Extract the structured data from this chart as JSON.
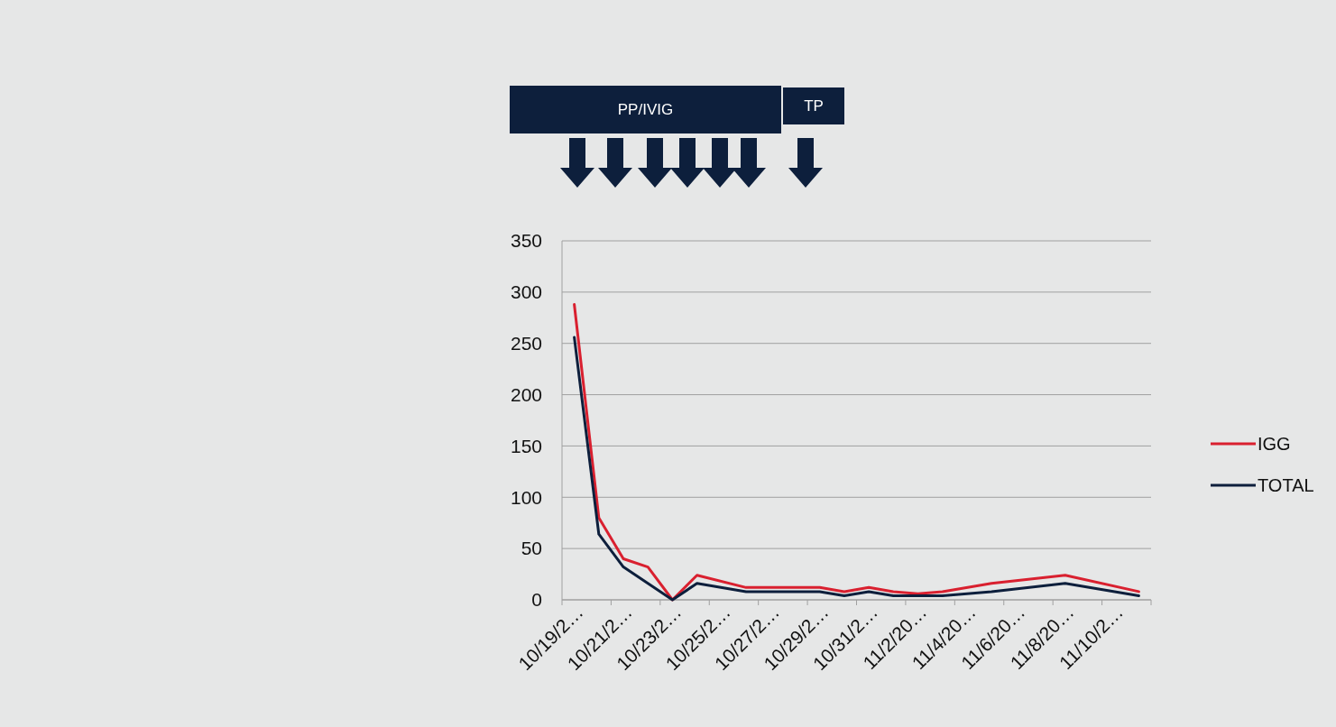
{
  "chart_data": {
    "type": "line",
    "categories": [
      "10/19/2…",
      null,
      "10/21/2…",
      null,
      "10/23/2…",
      null,
      "10/25/2…",
      null,
      "10/27/2…",
      null,
      "10/29/2…",
      null,
      "10/31/2…",
      null,
      "11/2/20…",
      null,
      "11/4/20…",
      null,
      "11/6/20…",
      null,
      "11/8/20…",
      null,
      "11/10/2…",
      null
    ],
    "series": [
      {
        "name": "IGG",
        "color": "#d9202f",
        "values": [
          288,
          80,
          40,
          32,
          0,
          24,
          null,
          12,
          null,
          null,
          12,
          8,
          12,
          8,
          6,
          8,
          null,
          16,
          null,
          null,
          24,
          null,
          null,
          8
        ]
      },
      {
        "name": "TOTAL",
        "color": "#0d1f3c",
        "values": [
          256,
          64,
          32,
          16,
          0,
          16,
          null,
          8,
          null,
          null,
          8,
          4,
          8,
          4,
          4,
          4,
          null,
          8,
          null,
          null,
          16,
          null,
          null,
          4
        ]
      }
    ],
    "ylim": [
      0,
      350
    ],
    "yticks": [
      0,
      50,
      100,
      150,
      200,
      250,
      300,
      350
    ],
    "grid": "y",
    "legend": "right",
    "marker": "none",
    "line_style": "solid",
    "annotations": [
      "PP/IVIG",
      "TP"
    ]
  }
}
